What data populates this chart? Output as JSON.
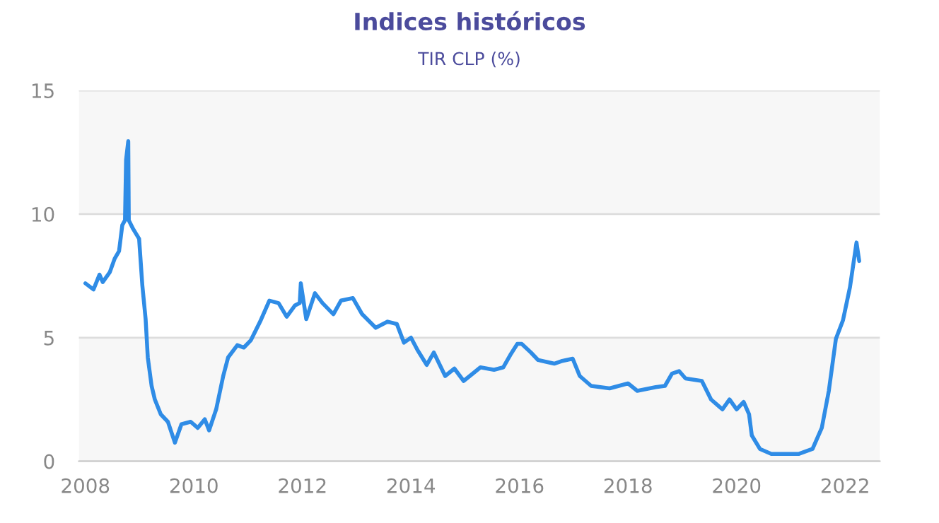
{
  "chart_data": {
    "type": "line",
    "title": "Indices históricos",
    "subtitle": "TIR CLP (%)",
    "x": [
      2008.0,
      2008.15,
      2008.26,
      2008.32,
      2008.45,
      2008.54,
      2008.62,
      2008.68,
      2008.73,
      2008.75,
      2008.79,
      2008.8,
      2008.88,
      2008.99,
      2009.05,
      2009.11,
      2009.15,
      2009.22,
      2009.28,
      2009.39,
      2009.52,
      2009.65,
      2009.77,
      2009.94,
      2010.07,
      2010.2,
      2010.28,
      2010.41,
      2010.54,
      2010.63,
      2010.8,
      2010.92,
      2011.05,
      2011.22,
      2011.39,
      2011.56,
      2011.71,
      2011.86,
      2011.95,
      2011.97,
      2012.07,
      2012.23,
      2012.37,
      2012.57,
      2012.71,
      2012.93,
      2013.1,
      2013.35,
      2013.57,
      2013.74,
      2013.87,
      2014.0,
      2014.12,
      2014.29,
      2014.42,
      2014.63,
      2014.8,
      2014.97,
      2015.14,
      2015.28,
      2015.53,
      2015.7,
      2015.83,
      2015.96,
      2016.04,
      2016.21,
      2016.34,
      2016.64,
      2016.77,
      2016.98,
      2017.11,
      2017.32,
      2017.66,
      2018.0,
      2018.17,
      2018.51,
      2018.68,
      2018.81,
      2018.94,
      2019.06,
      2019.36,
      2019.53,
      2019.74,
      2019.87,
      2020.0,
      2020.13,
      2020.23,
      2020.28,
      2020.43,
      2020.64,
      2021.15,
      2021.4,
      2021.57,
      2021.7,
      2021.83,
      2021.96,
      2022.09,
      2022.21,
      2022.26
    ],
    "series": [
      {
        "color": "#2f8ce6",
        "values": [
          7.2,
          6.95,
          7.55,
          7.25,
          7.65,
          8.2,
          8.5,
          9.55,
          9.75,
          12.2,
          12.95,
          9.75,
          9.4,
          9.0,
          7.1,
          5.75,
          4.2,
          3.05,
          2.5,
          1.9,
          1.6,
          0.75,
          1.5,
          1.6,
          1.35,
          1.7,
          1.25,
          2.1,
          3.45,
          4.2,
          4.7,
          4.6,
          4.9,
          5.65,
          6.5,
          6.4,
          5.85,
          6.3,
          6.4,
          7.2,
          5.75,
          6.8,
          6.4,
          5.95,
          6.5,
          6.6,
          5.95,
          5.4,
          5.65,
          5.55,
          4.8,
          5.0,
          4.5,
          3.9,
          4.4,
          3.45,
          3.75,
          3.25,
          3.55,
          3.8,
          3.7,
          3.8,
          4.3,
          4.75,
          4.75,
          4.4,
          4.1,
          3.95,
          4.05,
          4.15,
          3.45,
          3.05,
          2.95,
          3.15,
          2.85,
          3.0,
          3.05,
          3.55,
          3.65,
          3.35,
          3.25,
          2.5,
          2.1,
          2.5,
          2.1,
          2.4,
          1.9,
          1.05,
          0.5,
          0.3,
          0.3,
          0.5,
          1.35,
          2.85,
          4.95,
          5.7,
          7.05,
          8.85,
          8.1
        ]
      }
    ],
    "xlim": [
      2007.88,
      2022.64
    ],
    "xticks": [
      2008,
      2010,
      2012,
      2014,
      2016,
      2018,
      2020,
      2022
    ],
    "ylim": [
      0,
      15
    ],
    "yticks": [
      0,
      5,
      10,
      15
    ],
    "grid": "y",
    "legend": false,
    "marker": "none",
    "line_style": "solid",
    "bands": [
      {
        "axis": "y",
        "from": 0,
        "to": 5,
        "color": "#f7f7f7"
      },
      {
        "axis": "y",
        "from": 10,
        "to": 15,
        "color": "#f7f7f7"
      }
    ]
  }
}
